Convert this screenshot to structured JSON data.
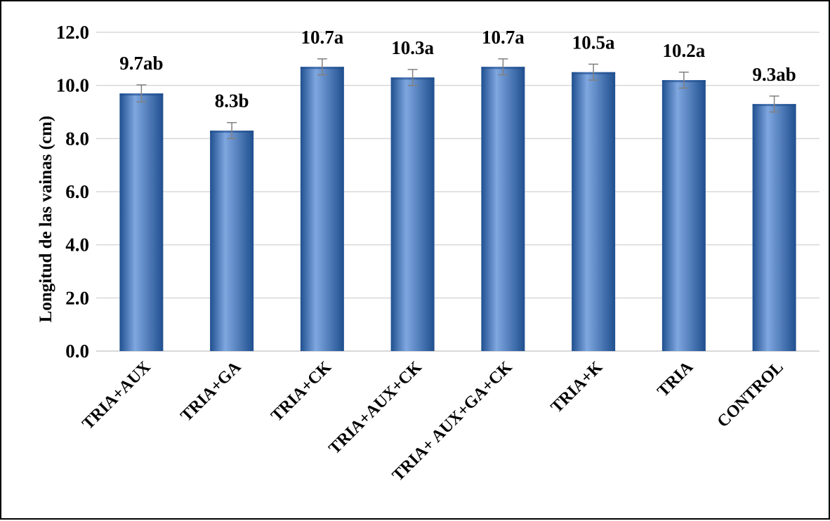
{
  "chart_data": {
    "type": "bar",
    "title": "",
    "xlabel": "",
    "ylabel": "Longitud de las vainas (cm)",
    "ylim": [
      0,
      12
    ],
    "yticks": [
      "0.0",
      "2.0",
      "4.0",
      "6.0",
      "8.0",
      "10.0",
      "12.0"
    ],
    "categories": [
      "TRIA+AUX",
      "TRIA+GA",
      "TRIA+CK",
      "TRIA+AUX+CK",
      "TRIA+ AUX+GA+CK",
      "TRIA+K",
      "TRIA",
      "CONTROL"
    ],
    "values": [
      9.7,
      8.3,
      10.7,
      10.3,
      10.7,
      10.5,
      10.2,
      9.3
    ],
    "error": [
      0.32,
      0.3,
      0.3,
      0.3,
      0.3,
      0.3,
      0.3,
      0.3
    ],
    "data_labels": [
      "9.7ab",
      "8.3b",
      "10.7a",
      "10.3a",
      "10.7a",
      "10.5a",
      "10.2a",
      "9.3ab"
    ],
    "grid": true,
    "legend": "none",
    "colors": {
      "bar": "#4a7ec8",
      "bar_dark": "#1f4f8f",
      "bar_light": "#7fa7e0",
      "grid": "#d9d9d9",
      "error_bar": "#808080"
    }
  }
}
